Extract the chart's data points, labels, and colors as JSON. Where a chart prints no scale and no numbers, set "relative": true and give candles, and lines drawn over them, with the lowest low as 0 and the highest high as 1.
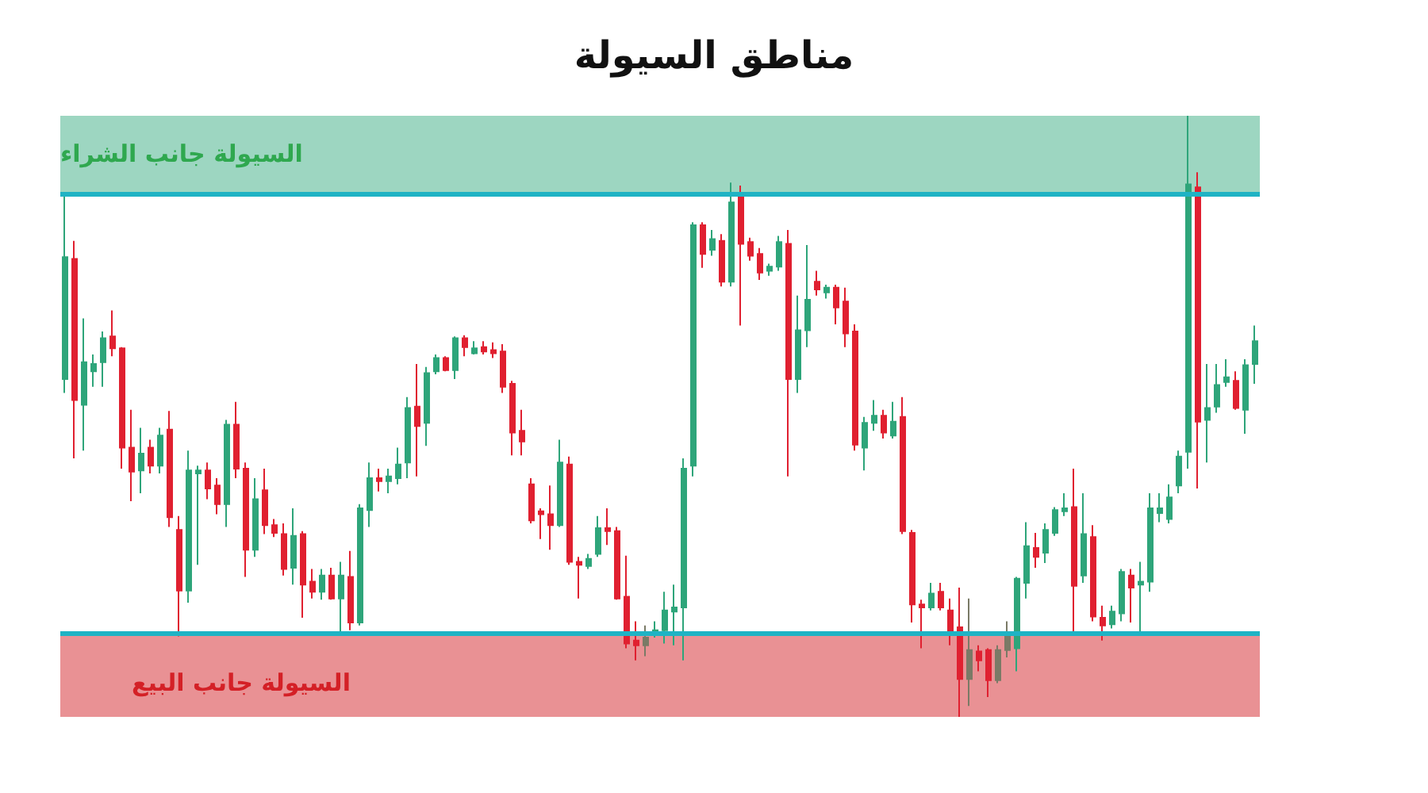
{
  "chart_data": {
    "type": "candlestick",
    "title": "مناطق السيولة",
    "relative": true,
    "categories": [
      null,
      null,
      null,
      null,
      null,
      null,
      null,
      null,
      null,
      null,
      null,
      null,
      null,
      null,
      null,
      null,
      null,
      null,
      null,
      null,
      null,
      null,
      null,
      null,
      null,
      null,
      null,
      null,
      null,
      null,
      null,
      null,
      null,
      null,
      null,
      null,
      null,
      null,
      null,
      null,
      null,
      null,
      null,
      null,
      null,
      null,
      null,
      null,
      null,
      null,
      null,
      null,
      null,
      null,
      null,
      null,
      null,
      null,
      null,
      null,
      null,
      null,
      null,
      null,
      null,
      null,
      null,
      null,
      null,
      null,
      null,
      null,
      null,
      null,
      null,
      null,
      null,
      null,
      null,
      null,
      null,
      null,
      null,
      null,
      null,
      null,
      null,
      null,
      null,
      null,
      null,
      null,
      null,
      null,
      null,
      null,
      null,
      null,
      null,
      null,
      null,
      null,
      null,
      null,
      null,
      null,
      null,
      null,
      null,
      null,
      null,
      null,
      null,
      null,
      null,
      null,
      null,
      null,
      null,
      null,
      null,
      null,
      null,
      null,
      null,
      null
    ],
    "ohlc": [
      [
        0.562,
        0.868,
        0.539,
        0.765
      ],
      [
        0.762,
        0.792,
        0.43,
        0.527
      ],
      [
        0.519,
        0.663,
        0.443,
        0.59
      ],
      [
        0.575,
        0.603,
        0.549,
        0.587
      ],
      [
        0.59,
        0.641,
        0.549,
        0.63
      ],
      [
        0.633,
        0.676,
        0.6,
        0.613
      ],
      [
        0.613,
        0.615,
        0.413,
        0.448
      ],
      [
        0.448,
        0.511,
        0.359,
        0.408
      ],
      [
        0.41,
        0.481,
        0.372,
        0.438
      ],
      [
        0.448,
        0.461,
        0.405,
        0.418
      ],
      [
        0.418,
        0.481,
        0.405,
        0.468
      ],
      [
        0.478,
        0.509,
        0.316,
        0.332
      ],
      [
        0.311,
        0.334,
        0.134,
        0.21
      ],
      [
        0.21,
        0.443,
        0.19,
        0.41
      ],
      [
        0.405,
        0.418,
        0.253,
        0.41
      ],
      [
        0.41,
        0.423,
        0.362,
        0.38
      ],
      [
        0.385,
        0.397,
        0.337,
        0.354
      ],
      [
        0.354,
        0.494,
        0.316,
        0.486
      ],
      [
        0.486,
        0.524,
        0.397,
        0.413
      ],
      [
        0.413,
        0.423,
        0.233,
        0.278
      ],
      [
        0.278,
        0.397,
        0.266,
        0.362
      ],
      [
        0.377,
        0.413,
        0.304,
        0.319
      ],
      [
        0.319,
        0.329,
        0.299,
        0.306
      ],
      [
        0.304,
        0.322,
        0.235,
        0.246
      ],
      [
        0.248,
        0.347,
        0.22,
        0.301
      ],
      [
        0.304,
        0.309,
        0.165,
        0.22
      ],
      [
        0.225,
        0.246,
        0.197,
        0.208
      ],
      [
        0.208,
        0.246,
        0.195,
        0.235
      ],
      [
        0.235,
        0.248,
        0.195,
        0.197
      ],
      [
        0.197,
        0.258,
        0.139,
        0.235
      ],
      [
        0.233,
        0.276,
        0.144,
        0.157
      ],
      [
        0.157,
        0.354,
        0.152,
        0.347
      ],
      [
        0.344,
        0.423,
        0.316,
        0.397
      ],
      [
        0.397,
        0.413,
        0.375,
        0.392
      ],
      [
        0.392,
        0.413,
        0.372,
        0.4
      ],
      [
        0.397,
        0.448,
        0.387,
        0.42
      ],
      [
        0.423,
        0.532,
        0.397,
        0.514
      ],
      [
        0.516,
        0.587,
        0.4,
        0.484
      ],
      [
        0.489,
        0.582,
        0.451,
        0.572
      ],
      [
        0.575,
        0.603,
        0.57,
        0.597
      ],
      [
        0.597,
        0.6,
        0.575,
        0.577
      ],
      [
        0.577,
        0.633,
        0.562,
        0.63
      ],
      [
        0.63,
        0.635,
        0.6,
        0.615
      ],
      [
        0.605,
        0.625,
        0.603,
        0.613
      ],
      [
        0.615,
        0.625,
        0.603,
        0.608
      ],
      [
        0.61,
        0.623,
        0.597,
        0.605
      ],
      [
        0.608,
        0.62,
        0.539,
        0.549
      ],
      [
        0.554,
        0.559,
        0.435,
        0.473
      ],
      [
        0.476,
        0.511,
        0.435,
        0.458
      ],
      [
        0.387,
        0.397,
        0.322,
        0.327
      ],
      [
        0.342,
        0.347,
        0.296,
        0.337
      ],
      [
        0.337,
        0.385,
        0.278,
        0.319
      ],
      [
        0.319,
        0.461,
        0.316,
        0.423
      ],
      [
        0.42,
        0.433,
        0.253,
        0.258
      ],
      [
        0.258,
        0.266,
        0.197,
        0.253
      ],
      [
        0.251,
        0.271,
        0.246,
        0.263
      ],
      [
        0.271,
        0.334,
        0.266,
        0.314
      ],
      [
        0.314,
        0.347,
        0.286,
        0.309
      ],
      [
        0.309,
        0.316,
        0.195,
        0.197
      ],
      [
        0.2,
        0.268,
        0.114,
        0.122
      ],
      [
        0.127,
        0.159,
        0.094,
        0.119
      ],
      [
        0.119,
        0.152,
        0.101,
        0.132
      ],
      [
        0.137,
        0.159,
        0.132,
        0.144
      ],
      [
        0.144,
        0.208,
        0.122,
        0.177
      ],
      [
        0.175,
        0.22,
        0.119,
        0.182
      ],
      [
        0.182,
        0.43,
        0.094,
        0.413
      ],
      [
        0.418,
        0.823,
        0.4,
        0.818
      ],
      [
        0.818,
        0.823,
        0.747,
        0.77
      ],
      [
        0.777,
        0.81,
        0.767,
        0.795
      ],
      [
        0.792,
        0.803,
        0.716,
        0.724
      ],
      [
        0.724,
        0.889,
        0.716,
        0.856
      ],
      [
        0.866,
        0.884,
        0.651,
        0.787
      ],
      [
        0.79,
        0.797,
        0.759,
        0.767
      ],
      [
        0.77,
        0.78,
        0.727,
        0.739
      ],
      [
        0.742,
        0.754,
        0.734,
        0.749
      ],
      [
        0.749,
        0.8,
        0.742,
        0.79
      ],
      [
        0.787,
        0.81,
        0.4,
        0.562
      ],
      [
        0.562,
        0.701,
        0.539,
        0.643
      ],
      [
        0.643,
        0.785,
        0.615,
        0.694
      ],
      [
        0.724,
        0.742,
        0.701,
        0.711
      ],
      [
        0.706,
        0.719,
        0.696,
        0.714
      ],
      [
        0.714,
        0.719,
        0.653,
        0.681
      ],
      [
        0.691,
        0.714,
        0.615,
        0.638
      ],
      [
        0.641,
        0.653,
        0.443,
        0.453
      ],
      [
        0.448,
        0.499,
        0.41,
        0.489
      ],
      [
        0.489,
        0.527,
        0.476,
        0.501
      ],
      [
        0.501,
        0.511,
        0.463,
        0.473
      ],
      [
        0.468,
        0.524,
        0.463,
        0.491
      ],
      [
        0.499,
        0.532,
        0.304,
        0.309
      ],
      [
        0.306,
        0.311,
        0.157,
        0.187
      ],
      [
        0.187,
        0.195,
        0.114,
        0.182
      ],
      [
        0.182,
        0.223,
        0.177,
        0.205
      ],
      [
        0.208,
        0.223,
        0.177,
        0.182
      ],
      [
        0.177,
        0.197,
        0.119,
        0.137
      ],
      [
        0.149,
        0.215,
        0,
        0.063
      ],
      [
        0.063,
        0.197,
        0.018,
        0.111
      ],
      [
        0.109,
        0.119,
        0.076,
        0.094
      ],
      [
        0.111,
        0.114,
        0.033,
        0.061
      ],
      [
        0.061,
        0.119,
        0.056,
        0.111
      ],
      [
        0.111,
        0.159,
        0.099,
        0.134
      ],
      [
        0.114,
        0.233,
        0.076,
        0.23
      ],
      [
        0.223,
        0.324,
        0.197,
        0.284
      ],
      [
        0.281,
        0.306,
        0.248,
        0.266
      ],
      [
        0.273,
        0.322,
        0.256,
        0.311
      ],
      [
        0.306,
        0.349,
        0.301,
        0.344
      ],
      [
        0.342,
        0.372,
        0.334,
        0.347
      ],
      [
        0.349,
        0.413,
        0.139,
        0.218
      ],
      [
        0.235,
        0.372,
        0.223,
        0.304
      ],
      [
        0.299,
        0.319,
        0.159,
        0.167
      ],
      [
        0.165,
        0.185,
        0.127,
        0.152
      ],
      [
        0.154,
        0.185,
        0.147,
        0.175
      ],
      [
        0.172,
        0.246,
        0.159,
        0.241
      ],
      [
        0.235,
        0.246,
        0.157,
        0.215
      ],
      [
        0.22,
        0.258,
        0.139,
        0.225
      ],
      [
        0.225,
        0.372,
        0.208,
        0.347
      ],
      [
        0.339,
        0.372,
        0.324,
        0.347
      ],
      [
        0.329,
        0.387,
        0.322,
        0.365
      ],
      [
        0.385,
        0.443,
        0.372,
        0.433
      ],
      [
        0.441,
        1,
        0.413,
        0.886
      ],
      [
        0.881,
        0.906,
        0.38,
        0.491
      ],
      [
        0.494,
        0.587,
        0.423,
        0.514
      ],
      [
        0.516,
        0.587,
        0.506,
        0.552
      ],
      [
        0.557,
        0.595,
        0.549,
        0.565
      ],
      [
        0.559,
        0.575,
        0.511,
        0.514
      ],
      [
        0.511,
        0.595,
        0.471,
        0.585
      ],
      [
        0.587,
        0.651,
        0.554,
        0.625
      ]
    ],
    "colors": [
      "#2ea57a",
      "#e02030",
      "#2ea57a",
      "#2ea57a",
      "#2ea57a",
      "#e02030",
      "#e02030",
      "#e02030",
      "#2ea57a",
      "#e02030",
      "#2ea57a",
      "#e02030",
      "#e02030",
      "#2ea57a",
      "#2ea57a",
      "#e02030",
      "#e02030",
      "#2ea57a",
      "#e02030",
      "#e02030",
      "#2ea57a",
      "#e02030",
      "#e02030",
      "#e02030",
      "#2ea57a",
      "#e02030",
      "#e02030",
      "#2ea57a",
      "#e02030",
      "#2ea57a",
      "#e02030",
      "#2ea57a",
      "#2ea57a",
      "#e02030",
      "#2ea57a",
      "#2ea57a",
      "#2ea57a",
      "#e02030",
      "#2ea57a",
      "#2ea57a",
      "#e02030",
      "#2ea57a",
      "#e02030",
      "#2ea57a",
      "#e02030",
      "#e02030",
      "#e02030",
      "#e02030",
      "#e02030",
      "#e02030",
      "#e02030",
      "#e02030",
      "#2ea57a",
      "#e02030",
      "#e02030",
      "#2ea57a",
      "#2ea57a",
      "#e02030",
      "#e02030",
      "#e02030",
      "#e02030",
      "#7a7a66",
      "#2ea57a",
      "#2ea57a",
      "#2ea57a",
      "#2ea57a",
      "#2ea57a",
      "#e02030",
      "#2ea57a",
      "#e02030",
      "#2ea57a",
      "#e02030",
      "#e02030",
      "#e02030",
      "#2ea57a",
      "#2ea57a",
      "#e02030",
      "#2ea57a",
      "#2ea57a",
      "#e02030",
      "#2ea57a",
      "#e02030",
      "#e02030",
      "#e02030",
      "#2ea57a",
      "#2ea57a",
      "#e02030",
      "#2ea57a",
      "#e02030",
      "#e02030",
      "#e02030",
      "#2ea57a",
      "#e02030",
      "#e02030",
      "#e02030",
      "#7a7a66",
      "#e02030",
      "#e02030",
      "#7a7a66",
      "#7a7a66",
      "#2ea57a",
      "#2ea57a",
      "#e02030",
      "#2ea57a",
      "#2ea57a",
      "#2ea57a",
      "#e02030",
      "#2ea57a",
      "#e02030",
      "#e02030",
      "#2ea57a",
      "#2ea57a",
      "#e02030",
      "#2ea57a",
      "#2ea57a",
      "#2ea57a",
      "#2ea57a",
      "#2ea57a",
      "#2ea57a",
      "#e02030",
      "#2ea57a",
      "#2ea57a",
      "#2ea57a",
      "#e02030",
      "#2ea57a",
      "#2ea57a"
    ],
    "ref_lines": [
      {
        "axis": "y",
        "value": 0.868,
        "label": "السيولة جانب الشراء",
        "color": "#1fb3c4"
      },
      {
        "axis": "y",
        "value": 0.137,
        "label": "السيولة جانب البيع",
        "color": "#1fb3c4"
      }
    ],
    "bands": [
      {
        "axis": "y",
        "from": 0.868,
        "to": 1,
        "color": "#9dd6c1"
      },
      {
        "axis": "y",
        "from": 0,
        "to": 0.137,
        "color": "#e99194"
      }
    ]
  }
}
